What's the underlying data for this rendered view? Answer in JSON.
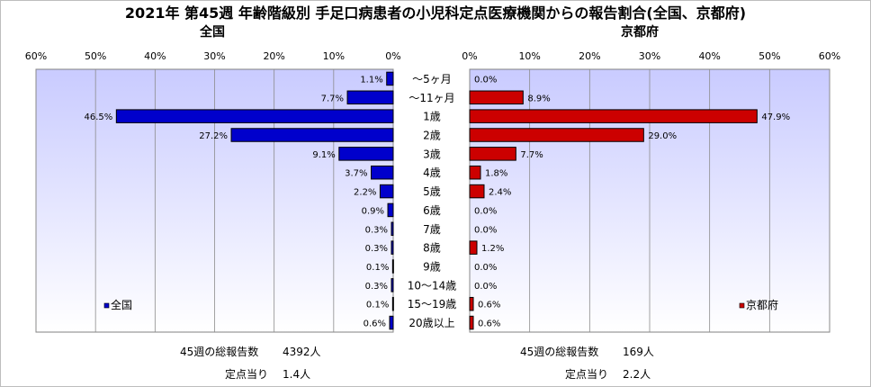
{
  "title": "2021年 第45週 年齢階級別 手足口病患者の小児科定点医療機関からの報告割合(全国、京都府)",
  "chart_data": {
    "type": "bar",
    "orientation": "horizontal-butterfly",
    "categories": [
      "～5ヶ月",
      "～11ヶ月",
      "1歳",
      "2歳",
      "3歳",
      "4歳",
      "5歳",
      "6歳",
      "7歳",
      "8歳",
      "9歳",
      "10～14歳",
      "15～19歳",
      "20歳以上"
    ],
    "unit": "%",
    "xlim": [
      0,
      60
    ],
    "ticks": [
      0,
      10,
      20,
      30,
      40,
      50,
      60
    ],
    "grid": true,
    "series": [
      {
        "name": "全国",
        "side": "left",
        "panel_title": "全国",
        "color": "#0000cc",
        "values": [
          1.1,
          7.7,
          46.5,
          27.2,
          9.1,
          3.7,
          2.2,
          0.9,
          0.3,
          0.3,
          0.1,
          0.3,
          0.1,
          0.6
        ],
        "labels": [
          "1.1%",
          "7.7%",
          "46.5%",
          "27.2%",
          "9.1%",
          "3.7%",
          "2.2%",
          "0.9%",
          "0.3%",
          "0.3%",
          "0.1%",
          "0.3%",
          "0.1%",
          "0.6%"
        ],
        "legend_position": "bottom-left",
        "footer": {
          "total_label": "45週の総報告数",
          "total_value": "4392人",
          "per_site_label": "定点当り",
          "per_site_value": "1.4人"
        }
      },
      {
        "name": "京都府",
        "side": "right",
        "panel_title": "京都府",
        "color": "#cc0000",
        "values": [
          0.0,
          8.9,
          47.9,
          29.0,
          7.7,
          1.8,
          2.4,
          0.0,
          0.0,
          1.2,
          0.0,
          0.0,
          0.6,
          0.6
        ],
        "labels": [
          "0.0%",
          "8.9%",
          "47.9%",
          "29.0%",
          "7.7%",
          "1.8%",
          "2.4%",
          "0.0%",
          "0.0%",
          "1.2%",
          "0.0%",
          "0.0%",
          "0.6%",
          "0.6%"
        ],
        "legend_position": "bottom-right",
        "footer": {
          "total_label": "45週の総報告数",
          "total_value": "169人",
          "per_site_label": "定点当り",
          "per_site_value": "2.2人"
        }
      }
    ]
  }
}
